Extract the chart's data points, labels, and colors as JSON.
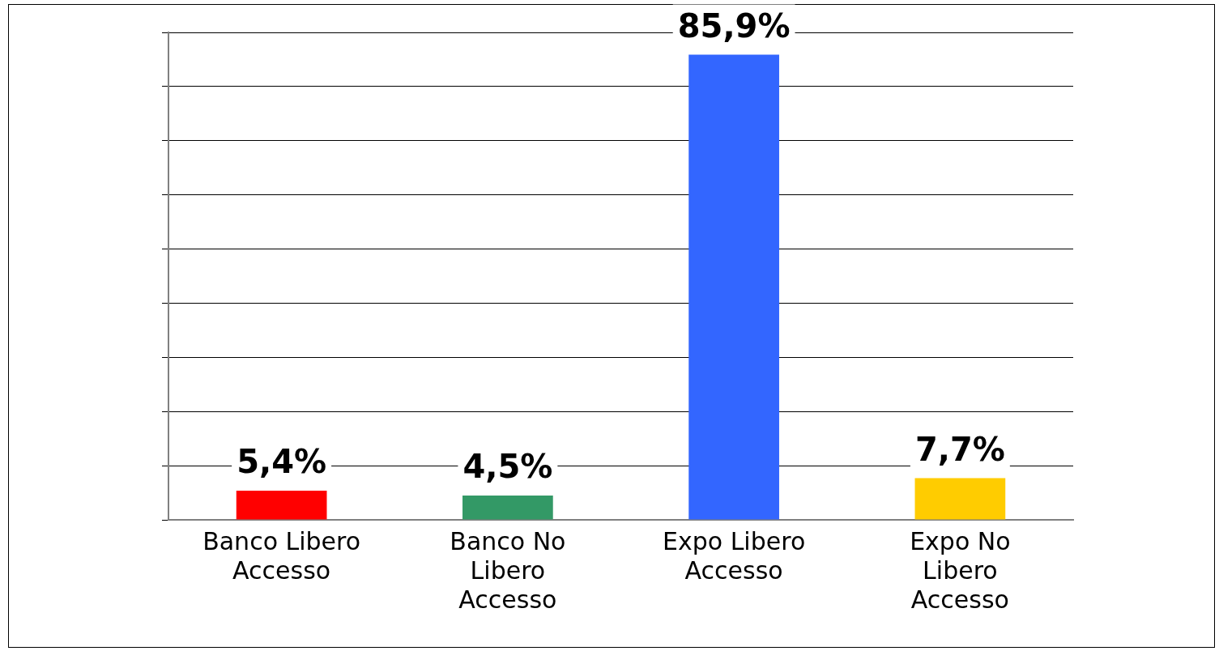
{
  "chart_data": {
    "type": "bar",
    "categories": [
      "Banco Libero Accesso",
      "Banco No Libero Accesso",
      "Expo Libero Accesso",
      "Expo No Libero Accesso"
    ],
    "values": [
      5.4,
      4.5,
      85.9,
      7.7
    ],
    "colors": [
      "#ff0000",
      "#339966",
      "#3366ff",
      "#ffcc00"
    ],
    "value_labels": [
      "5,4%",
      "4,5%",
      "85,9%",
      "7,7%"
    ],
    "tick_labels": "x",
    "grid": "y",
    "legend": false
  }
}
